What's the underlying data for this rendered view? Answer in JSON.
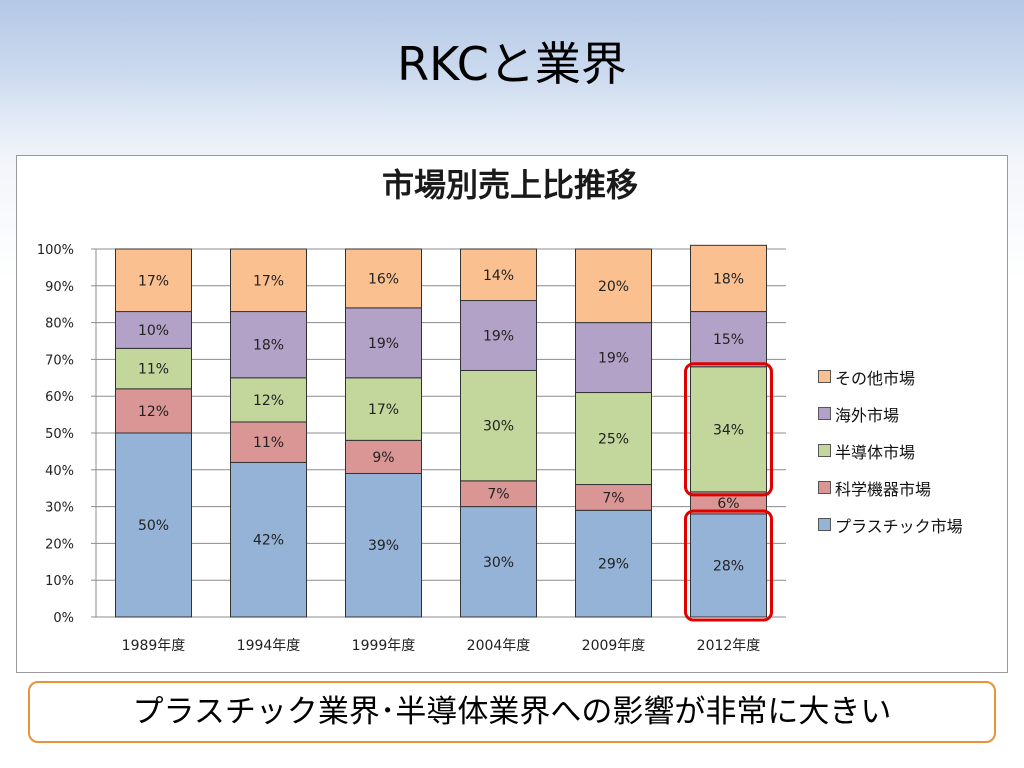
{
  "slide": {
    "title": "RKCと業界",
    "summary": "プラスチック業界･半導体業界への影響が非常に大きい"
  },
  "chart_data": {
    "type": "bar",
    "stacked": true,
    "title": "市場別売上比推移",
    "categories": [
      "1989年度",
      "1994年度",
      "1999年度",
      "2004年度",
      "2009年度",
      "2012年度"
    ],
    "series": [
      {
        "name": "プラスチック市場",
        "color": "#95b3d7",
        "values": [
          50,
          42,
          39,
          30,
          29,
          28
        ]
      },
      {
        "name": "科学機器市場",
        "color": "#d99694",
        "values": [
          12,
          11,
          9,
          7,
          7,
          6
        ]
      },
      {
        "name": "半導体市場",
        "color": "#c3d69b",
        "values": [
          11,
          12,
          17,
          30,
          25,
          34
        ]
      },
      {
        "name": "海外市場",
        "color": "#b3a2c7",
        "values": [
          10,
          18,
          19,
          19,
          19,
          15
        ]
      },
      {
        "name": "その他市場",
        "color": "#fac090",
        "values": [
          17,
          17,
          16,
          14,
          20,
          18
        ]
      }
    ],
    "yticks": [
      "0%",
      "10%",
      "20%",
      "30%",
      "40%",
      "50%",
      "60%",
      "70%",
      "80%",
      "90%",
      "100%"
    ],
    "ylim": [
      0,
      100
    ],
    "grid": true,
    "legend_position": "right",
    "legend_order": [
      "その他市場",
      "海外市場",
      "半導体市場",
      "科学機器市場",
      "プラスチック市場"
    ],
    "highlights": [
      {
        "category": "2012年度",
        "series": "半導体市場",
        "color": "#e00000"
      },
      {
        "category": "2012年度",
        "series": "プラスチック市場",
        "color": "#e00000"
      }
    ]
  }
}
